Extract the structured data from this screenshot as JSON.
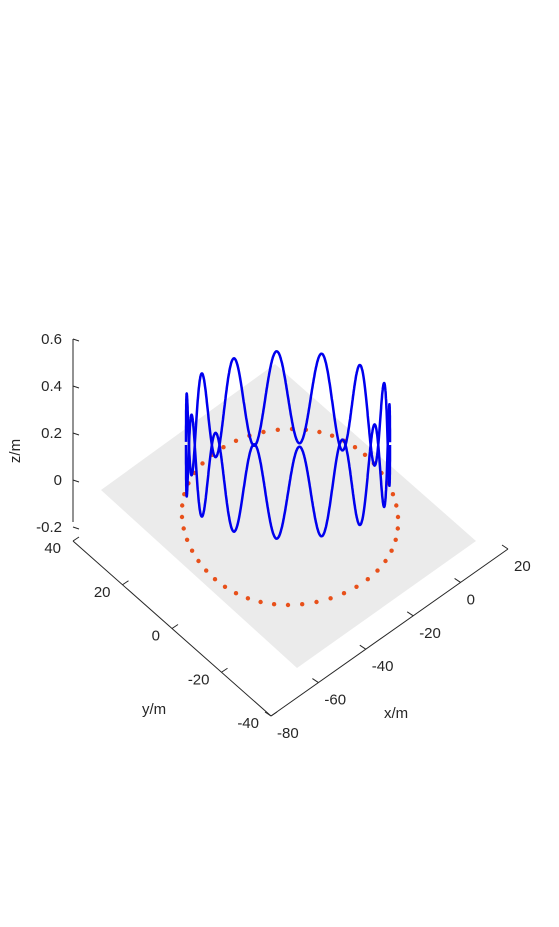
{
  "chart_data": {
    "type": "line3d",
    "xlabel": "x/m",
    "ylabel": "y/m",
    "zlabel": "z/m",
    "xlim": [
      -80,
      20
    ],
    "ylim": [
      -40,
      40
    ],
    "zlim": [
      -0.2,
      0.6
    ],
    "xticks": [
      "-80",
      "-60",
      "-40",
      "-20",
      "0",
      "20"
    ],
    "yticks": [
      "-40",
      "-20",
      "0",
      "20",
      "40"
    ],
    "zticks": [
      "-0.2",
      "0",
      "0.2",
      "0.4",
      "0.6"
    ],
    "plane": {
      "z": 0,
      "color": "#ebebeb"
    },
    "surface_wave": {
      "color": "#0000ee",
      "center": [
        -30,
        0
      ],
      "radius": 28,
      "base_z": 0.25,
      "amplitude": 0.2,
      "cycles": 14
    },
    "markers": {
      "color": "#e8501a",
      "center": [
        -30,
        0
      ],
      "radius": 36,
      "count": 48,
      "z": 0
    },
    "colors": {
      "axis": "#262626",
      "plane": "#ebebeb",
      "line": "#0000ee",
      "markers": "#e8501a"
    }
  }
}
